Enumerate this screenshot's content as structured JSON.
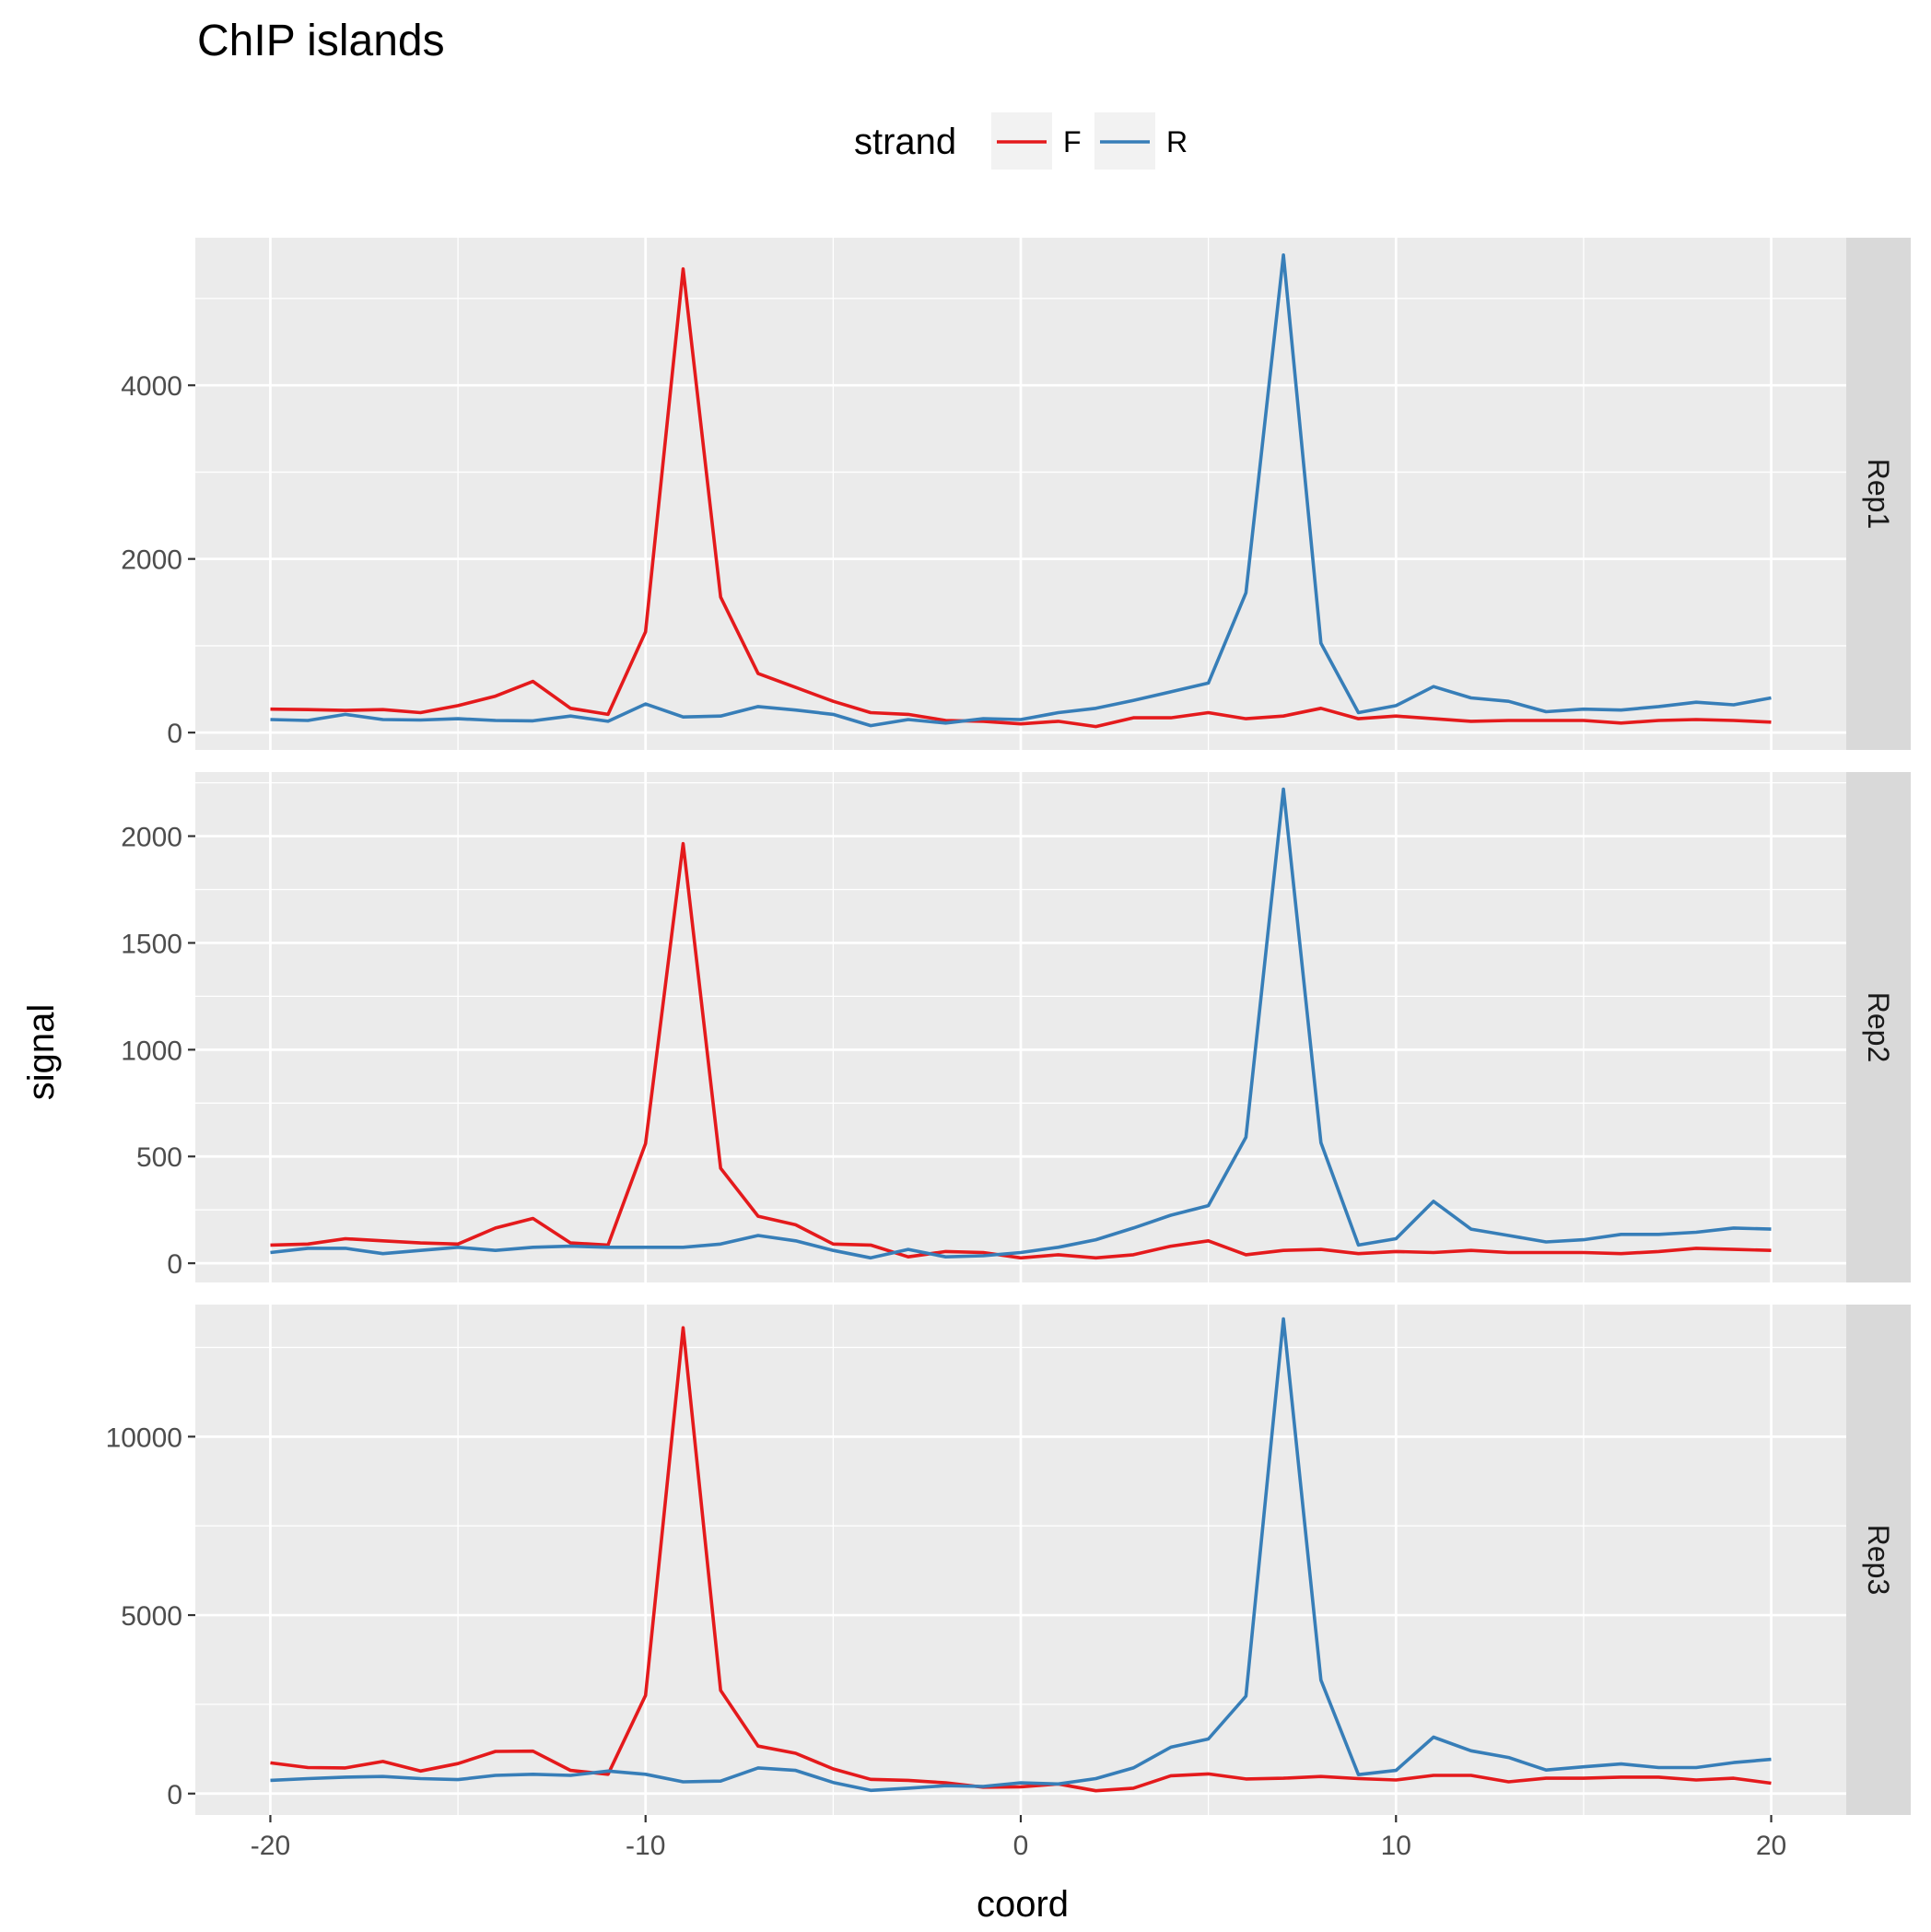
{
  "chart_data": {
    "type": "line",
    "title": "ChIP islands",
    "xlabel": "coord",
    "ylabel": "signal",
    "legend": {
      "title": "strand",
      "position": "top",
      "entries": [
        {
          "name": "F",
          "color": "#E41A1C"
        },
        {
          "name": "R",
          "color": "#377EB8"
        }
      ]
    },
    "grid": true,
    "xlim": [
      -22,
      22
    ],
    "xticks": [
      -20,
      -10,
      0,
      10,
      20
    ],
    "xtick_labels": [
      "-20",
      "-10",
      "0",
      "10",
      "20"
    ],
    "x": [
      -20,
      -19,
      -18,
      -17,
      -16,
      -15,
      -14,
      -13,
      -12,
      -11,
      -10,
      -9,
      -8,
      -7,
      -6,
      -5,
      -4,
      -3,
      -2,
      -1,
      0,
      1,
      2,
      3,
      4,
      5,
      6,
      7,
      8,
      9,
      10,
      11,
      12,
      13,
      14,
      15,
      16,
      17,
      18,
      19,
      20
    ],
    "panels": [
      {
        "label": "Rep1",
        "ylim": [
          -200,
          5700
        ],
        "yticks": [
          0,
          2000,
          4000
        ],
        "ytick_labels": [
          "0",
          "2000",
          "4000"
        ],
        "series": [
          {
            "name": "F",
            "color": "#E41A1C",
            "values": [
              270,
              265,
              255,
              265,
              230,
              310,
              420,
              590,
              280,
              210,
              1160,
              5340,
              1560,
              680,
              520,
              360,
              230,
              210,
              140,
              130,
              100,
              130,
              70,
              170,
              170,
              230,
              160,
              190,
              280,
              160,
              190,
              160,
              130,
              140,
              140,
              140,
              110,
              140,
              150,
              140,
              120
            ]
          },
          {
            "name": "R",
            "color": "#377EB8",
            "values": [
              150,
              140,
              210,
              150,
              145,
              160,
              140,
              135,
              190,
              130,
              330,
              180,
              190,
              300,
              260,
              210,
              80,
              150,
              110,
              160,
              150,
              230,
              280,
              370,
              470,
              570,
              1610,
              5500,
              1030,
              230,
              310,
              530,
              400,
              360,
              240,
              270,
              260,
              300,
              350,
              320,
              400
            ]
          }
        ]
      },
      {
        "label": "Rep2",
        "ylim": [
          -90,
          2300
        ],
        "yticks": [
          0,
          500,
          1000,
          1500,
          2000
        ],
        "ytick_labels": [
          "0",
          "500",
          "1000",
          "1500",
          "2000"
        ],
        "series": [
          {
            "name": "F",
            "color": "#E41A1C",
            "values": [
              85,
              90,
              115,
              105,
              95,
              90,
              165,
              210,
              95,
              85,
              560,
              1965,
              445,
              220,
              180,
              90,
              85,
              30,
              55,
              50,
              25,
              40,
              25,
              40,
              80,
              105,
              40,
              60,
              65,
              45,
              55,
              50,
              60,
              50,
              50,
              50,
              45,
              55,
              70,
              65,
              60
            ]
          },
          {
            "name": "R",
            "color": "#377EB8",
            "values": [
              50,
              70,
              70,
              45,
              60,
              75,
              60,
              75,
              80,
              75,
              75,
              75,
              90,
              130,
              105,
              60,
              25,
              65,
              30,
              35,
              50,
              75,
              110,
              165,
              225,
              270,
              590,
              2220,
              565,
              85,
              115,
              290,
              160,
              130,
              100,
              110,
              135,
              135,
              145,
              165,
              160
            ]
          }
        ]
      },
      {
        "label": "Rep3",
        "ylim": [
          -600,
          13700
        ],
        "yticks": [
          0,
          5000,
          10000
        ],
        "ytick_labels": [
          "0",
          "5000",
          "10000"
        ],
        "series": [
          {
            "name": "F",
            "color": "#E41A1C",
            "values": [
              860,
              730,
              720,
              900,
              630,
              840,
              1180,
              1190,
              650,
              540,
              2750,
              13050,
              2890,
              1330,
              1130,
              690,
              400,
              370,
              300,
              180,
              190,
              270,
              80,
              150,
              500,
              550,
              410,
              430,
              480,
              420,
              380,
              510,
              510,
              330,
              430,
              430,
              460,
              460,
              380,
              430,
              290
            ]
          },
          {
            "name": "R",
            "color": "#377EB8",
            "values": [
              370,
              420,
              460,
              480,
              420,
              390,
              510,
              540,
              510,
              630,
              540,
              330,
              350,
              720,
              650,
              310,
              90,
              150,
              220,
              200,
              300,
              270,
              420,
              720,
              1300,
              1530,
              2730,
              13300,
              3180,
              530,
              650,
              1580,
              1200,
              1010,
              660,
              750,
              830,
              730,
              730,
              870,
              960
            ]
          }
        ]
      }
    ]
  }
}
